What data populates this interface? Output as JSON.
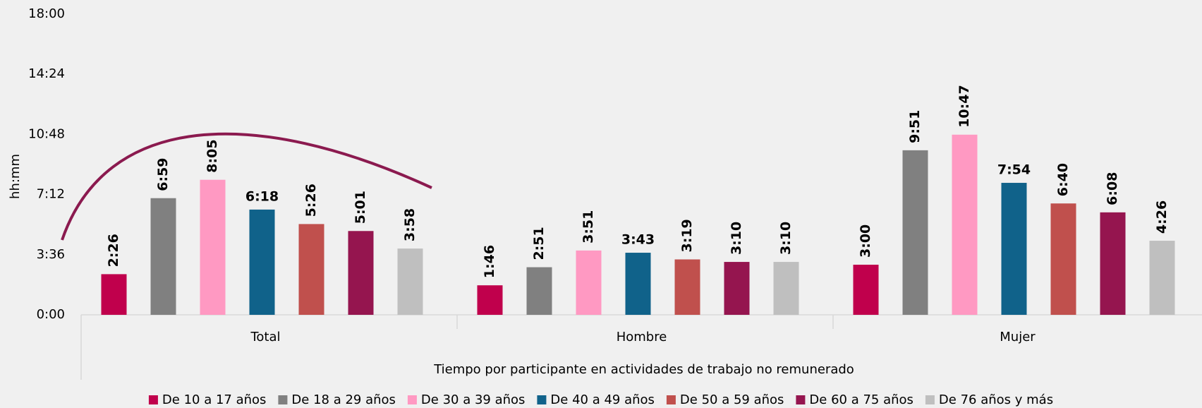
{
  "chart_data": {
    "type": "bar",
    "y_axis_label": "hh:mm",
    "x_axis_label": "Tiempo por participante en actividades de trabajo no remunerado",
    "categories": [
      "Total",
      "Hombre",
      "Mujer"
    ],
    "ylim": [
      0,
      1080
    ],
    "yticks": [
      {
        "value": 0,
        "label": "0:00"
      },
      {
        "value": 216,
        "label": "3:36"
      },
      {
        "value": 432,
        "label": "7:12"
      },
      {
        "value": 648,
        "label": "10:48"
      },
      {
        "value": 864,
        "label": "14:24"
      },
      {
        "value": 1080,
        "label": "18:00"
      }
    ],
    "legend": "bottom",
    "series": [
      {
        "name": "De 10 a 17 años",
        "color": "#c0004c",
        "values": [
          146,
          106,
          180
        ],
        "value_labels": [
          "2:26",
          "1:46",
          "3:00"
        ]
      },
      {
        "name": "De 18 a 29 años",
        "color": "#808080",
        "values": [
          419,
          171,
          591
        ],
        "value_labels": [
          "6:59",
          "2:51",
          "9:51"
        ]
      },
      {
        "name": "De 30 a 39 años",
        "color": "#ff99c2",
        "values": [
          485,
          231,
          647
        ],
        "value_labels": [
          "8:05",
          "3:51",
          "10:47"
        ]
      },
      {
        "name": "De 40 a 49 años",
        "color": "#10628a",
        "values": [
          378,
          223,
          474
        ],
        "value_labels": [
          "6:18",
          "3:43",
          "7:54"
        ]
      },
      {
        "name": "De 50 a 59 años",
        "color": "#c0504d",
        "values": [
          326,
          199,
          400
        ],
        "value_labels": [
          "5:26",
          "3:19",
          "6:40"
        ]
      },
      {
        "name": "De 60 a 75 años",
        "color": "#95154f",
        "values": [
          301,
          190,
          368
        ],
        "value_labels": [
          "5:01",
          "3:10",
          "6:08"
        ]
      },
      {
        "name": "De 76 años y más",
        "color": "#bfbfbf",
        "values": [
          238,
          190,
          266
        ],
        "value_labels": [
          "3:58",
          "3:10",
          "4:26"
        ]
      }
    ]
  }
}
